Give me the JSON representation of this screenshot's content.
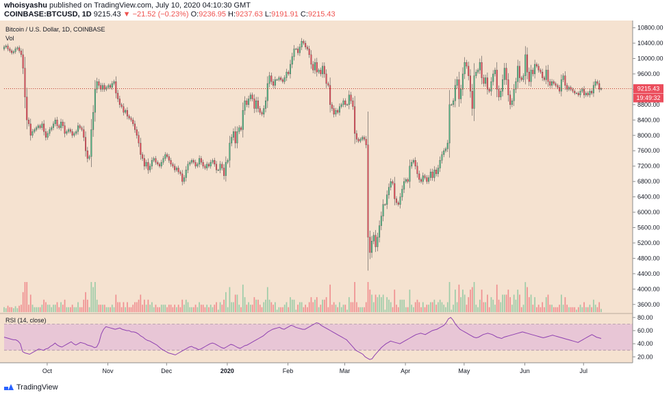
{
  "header": {
    "author": "whoisyashu",
    "published_text": "published on TradingView.com, July 10, 2020 04:10:30 GMT",
    "symbol": "COINBASE:BTCUSD, 1D",
    "last": "9215.43",
    "change": "−21.52 (−0.23%)",
    "o_label": "O:",
    "o": "9236.95",
    "h_label": "H:",
    "h": "9237.63",
    "l_label": "L:",
    "l": "9191.91",
    "c_label": "C:",
    "c": "9215.43"
  },
  "legend": {
    "title": "Bitcoin / U.S. Dollar, 1D, COINBASE",
    "vol_label": "Vol",
    "rsi_label": "RSI (14, close)"
  },
  "price_badge": "9215.43",
  "time_badge": "19:49:32",
  "watermark": "TradingView",
  "colors": {
    "up": "#53b987",
    "down": "#eb4d5c",
    "background": "#f5e2d0",
    "rsi_band": "#e8c6d6",
    "rsi_line": "#8e3fb0",
    "last_price_line": "#c0392b"
  },
  "chart_data": [
    {
      "type": "candlestick",
      "title": "Bitcoin / U.S. Dollar, 1D, COINBASE",
      "y_ticks": [
        "3600.00",
        "4000.00",
        "4400.00",
        "4800.00",
        "5200.00",
        "5600.00",
        "6000.00",
        "6400.00",
        "6800.00",
        "7200.00",
        "7600.00",
        "8000.00",
        "8400.00",
        "8800.00",
        "9200.00",
        "9600.00",
        "10000.00",
        "10400.00",
        "10800.00"
      ],
      "ylim": [
        3400,
        10900
      ],
      "x_ticks": [
        "Oct",
        "Nov",
        "Dec",
        "2020",
        "Feb",
        "Mar",
        "Apr",
        "May",
        "Jun",
        "Jul"
      ],
      "x_range": [
        "2019-09-09",
        "2020-07-10"
      ],
      "last_price": 9215.43,
      "close": [
        10300,
        10330,
        10250,
        10200,
        10150,
        10180,
        10250,
        10280,
        10200,
        10100,
        9750,
        9000,
        8400,
        8300,
        8000,
        8100,
        8150,
        8200,
        8250,
        8200,
        8300,
        8100,
        7950,
        8050,
        8150,
        8200,
        8300,
        8400,
        8250,
        8200,
        8350,
        8250,
        8050,
        8100,
        8150,
        8100,
        8000,
        8050,
        8100,
        8250,
        8200,
        8150,
        7950,
        7600,
        7400,
        7450,
        8150,
        8600,
        9200,
        9400,
        9300,
        9200,
        9300,
        9200,
        9250,
        9300,
        9250,
        9350,
        9400,
        9100,
        8950,
        8800,
        8750,
        8600,
        8650,
        8500,
        8450,
        8400,
        8300,
        8150,
        8000,
        7800,
        7500,
        7400,
        7200,
        7300,
        7100,
        7200,
        7350,
        7400,
        7300,
        7250,
        7200,
        7300,
        7400,
        7500,
        7450,
        7350,
        7250,
        7200,
        7100,
        7150,
        7050,
        7000,
        6800,
        6900,
        7100,
        7250,
        7300,
        7350,
        7300,
        7200,
        7250,
        7400,
        7300,
        7200,
        7150,
        7250,
        7200,
        7300,
        7350,
        7250,
        7100,
        7100,
        7250,
        7150,
        6950,
        7300,
        7350,
        7800,
        7950,
        8100,
        7800,
        8100,
        8200,
        8150,
        8650,
        8900,
        8800,
        8950,
        9050,
        8950,
        8700,
        8900,
        8700,
        8600,
        8550,
        8700,
        8900,
        9350,
        9550,
        9400,
        9300,
        9450,
        9450,
        9500,
        9450,
        9400,
        9500,
        9650,
        9600,
        9850,
        10050,
        10250,
        10250,
        10150,
        10300,
        10450,
        10400,
        10300,
        10250,
        10100,
        9850,
        9700,
        9900,
        9650,
        9700,
        9600,
        9800,
        9600,
        9350,
        9300,
        8800,
        8700,
        8550,
        8650,
        8600,
        8750,
        8800,
        8900,
        8800,
        8800,
        9050,
        8900,
        8750,
        8050,
        7900,
        7850,
        7900,
        7950,
        7900,
        7750,
        5350,
        4950,
        5250,
        5400,
        5100,
        5350,
        5650,
        5900,
        6200,
        6200,
        6450,
        6650,
        6800,
        6750,
        6350,
        6250,
        6200,
        6400,
        6600,
        6800,
        6850,
        6800,
        7200,
        7300,
        7350,
        7200,
        7000,
        6850,
        6800,
        6950,
        6900,
        6800,
        6900,
        7050,
        6900,
        7100,
        7000,
        7150,
        7350,
        7500,
        7600,
        7650,
        7800,
        8800,
        8800,
        8900,
        9300,
        9450,
        8950,
        9200,
        9600,
        9900,
        9800,
        9550,
        9150,
        8700,
        9550,
        9650,
        9700,
        9900,
        9500,
        9350,
        9500,
        9200,
        9150,
        9400,
        9600,
        9700,
        9200,
        9000,
        9150,
        9450,
        9750,
        9450,
        9050,
        8800,
        8900,
        9200,
        9400,
        9800,
        9500,
        9450,
        9550,
        10100,
        9650,
        9400,
        9700,
        9600,
        9850,
        9800,
        9700,
        9650,
        9500,
        9450,
        9700,
        9400,
        9300,
        9400,
        9350,
        9300,
        9250,
        9150,
        9450,
        9550,
        9300,
        9200,
        9250,
        9200,
        9150,
        9100,
        9100,
        9050,
        9150,
        9200,
        9050,
        9100,
        9050,
        9150,
        9100,
        9300,
        9400,
        9350,
        9200,
        9215.43
      ],
      "volume_scale": "relative",
      "rsi": {
        "label": "RSI (14, close)",
        "y_ticks": [
          "20.00",
          "40.00",
          "60.00",
          "80.00"
        ],
        "ylim": [
          12,
          84
        ],
        "band": [
          30,
          70
        ],
        "values": [
          50,
          49,
          48,
          47,
          46,
          46,
          44,
          40,
          28,
          26,
          25,
          24,
          26,
          28,
          30,
          32,
          31,
          30,
          32,
          33,
          36,
          38,
          41,
          38,
          36,
          35,
          37,
          39,
          41,
          43,
          40,
          38,
          40,
          42,
          41,
          40,
          38,
          37,
          36,
          34,
          35,
          42,
          55,
          62,
          66,
          65,
          64,
          63,
          62,
          63,
          64,
          62,
          61,
          60,
          60,
          58,
          58,
          57,
          55,
          52,
          50,
          47,
          45,
          44,
          42,
          40,
          38,
          35,
          32,
          30,
          28,
          26,
          25,
          24,
          23,
          25,
          27,
          29,
          31,
          33,
          35,
          36,
          34,
          33,
          31,
          32,
          34,
          36,
          38,
          40,
          41,
          40,
          38,
          36,
          34,
          33,
          35,
          37,
          39,
          38,
          36,
          34,
          33,
          35,
          37,
          38,
          40,
          42,
          44,
          46,
          48,
          50,
          52,
          55,
          58,
          60,
          62,
          63,
          64,
          65,
          63,
          62,
          64,
          66,
          68,
          67,
          65,
          64,
          63,
          62,
          62,
          64,
          66,
          68,
          70,
          72,
          71,
          68,
          66,
          64,
          62,
          60,
          58,
          56,
          54,
          52,
          50,
          48,
          46,
          42,
          38,
          34,
          30,
          28,
          26,
          24,
          20,
          18,
          16,
          17,
          22,
          26,
          30,
          34,
          37,
          40,
          42,
          44,
          43,
          42,
          41,
          40,
          42,
          44,
          46,
          48,
          50,
          52,
          54,
          55,
          56,
          55,
          54,
          56,
          58,
          60,
          61,
          62,
          64,
          66,
          68,
          72,
          78,
          80,
          76,
          70,
          66,
          62,
          60,
          58,
          56,
          54,
          52,
          50,
          49,
          50,
          52,
          54,
          55,
          56,
          55,
          54,
          52,
          50,
          49,
          48,
          50,
          51,
          52,
          53,
          54,
          55,
          56,
          57,
          58,
          57,
          56,
          55,
          54,
          53,
          52,
          51,
          50,
          49,
          50,
          51,
          52,
          53,
          52,
          51,
          50,
          49,
          48,
          47,
          46,
          45,
          44,
          43,
          42,
          44,
          46,
          48,
          50,
          52,
          54,
          52,
          50,
          49,
          48
        ]
      }
    }
  ]
}
